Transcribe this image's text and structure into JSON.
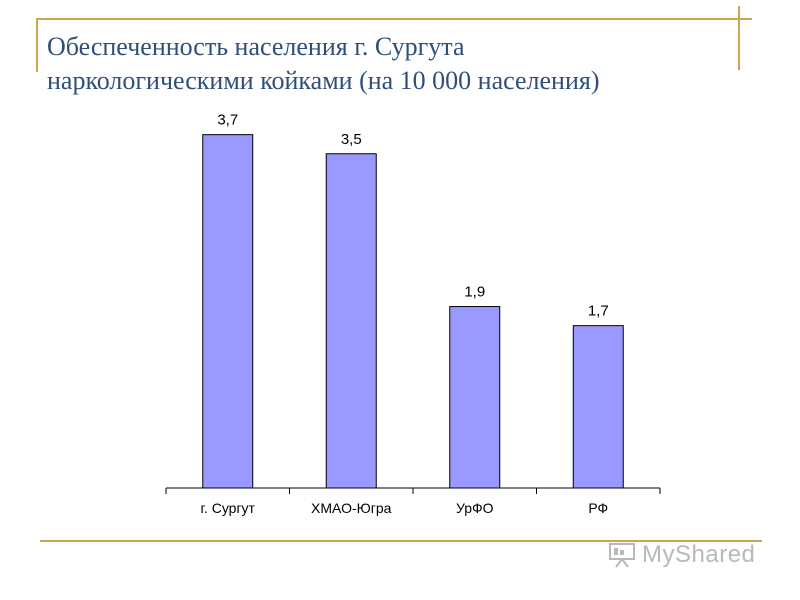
{
  "slide": {
    "title_line1": "Обеспеченность населения г. Сургута",
    "title_line2": "наркологическими койками (на 10 000 населения)",
    "watermark_text": "MyShared",
    "watermark_icon": "presentation-board-icon"
  },
  "colors": {
    "accent": "#c8a84a",
    "title": "#2f4f7a",
    "bar_fill": "#9999ff",
    "bar_stroke": "#000000"
  },
  "chart_data": {
    "type": "bar",
    "title": "",
    "xlabel": "",
    "ylabel": "",
    "categories": [
      "г. Сургут",
      "ХМАО-Югра",
      "УрФО",
      "РФ"
    ],
    "values": [
      3.7,
      3.5,
      1.9,
      1.7
    ],
    "value_labels": [
      "3,7",
      "3,5",
      "1,9",
      "1,7"
    ],
    "ylim": [
      0,
      4
    ],
    "grid": false,
    "legend": "none"
  }
}
